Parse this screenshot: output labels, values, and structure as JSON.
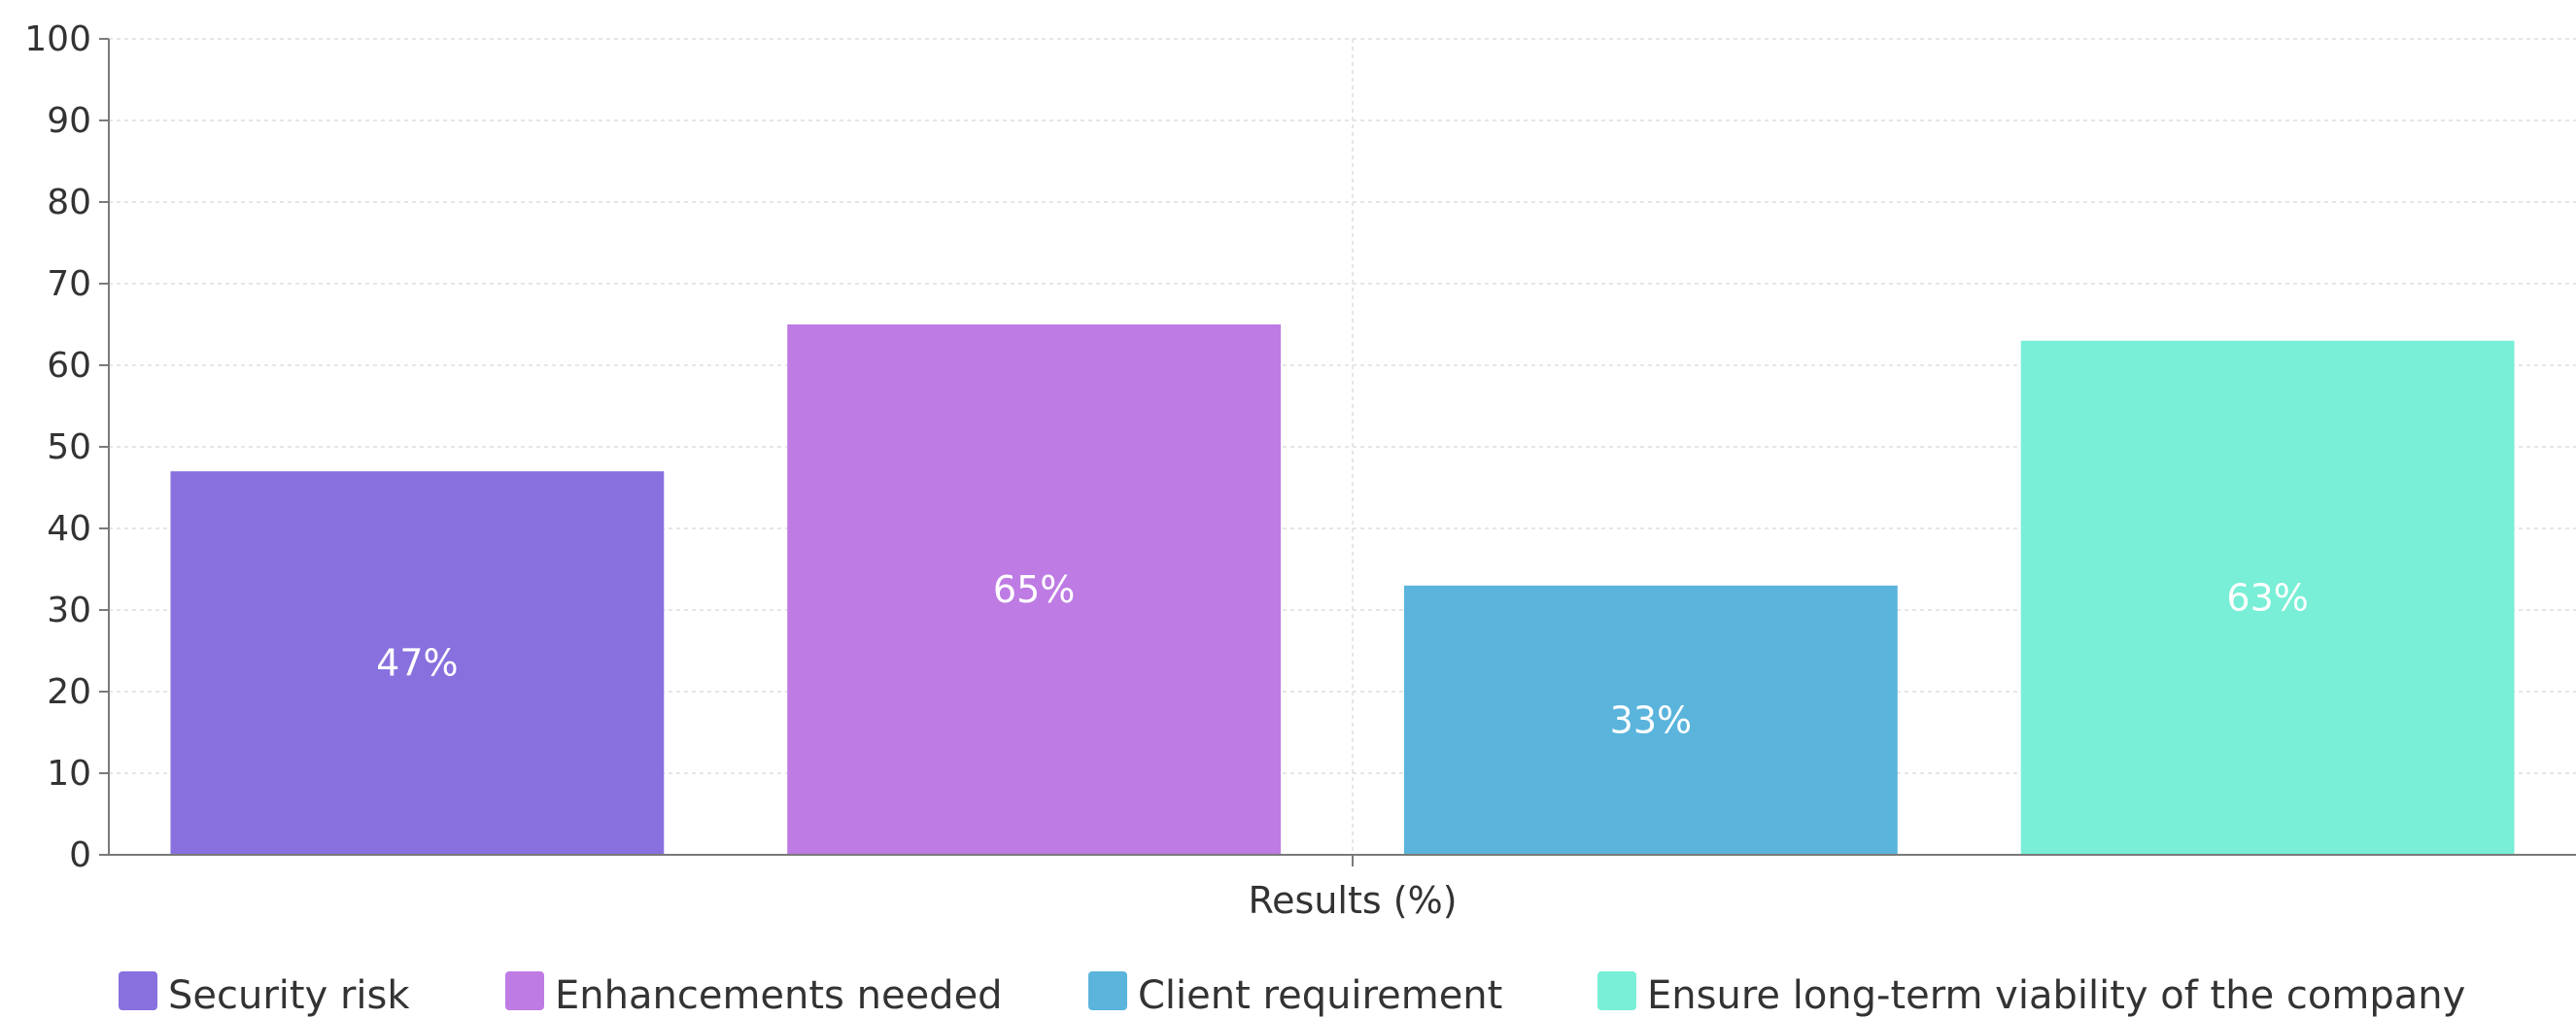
{
  "chart_data": {
    "type": "bar",
    "xlabel": "Results (%)",
    "ylabel": "",
    "ylim": [
      0,
      100
    ],
    "yticks": [
      0,
      10,
      20,
      30,
      40,
      50,
      60,
      70,
      80,
      90,
      100
    ],
    "grid": true,
    "legend_position": "bottom",
    "categories": [
      "Security risk",
      "Enhancements needed",
      "Client requirement",
      "Ensure long-term viability of the company"
    ],
    "values": [
      47,
      65,
      33,
      63
    ],
    "data_labels": [
      "47%",
      "65%",
      "33%",
      "63%"
    ],
    "colors": [
      "#8870DE",
      "#BE7BE3",
      "#5AB4DC",
      "#78EFD6"
    ]
  }
}
